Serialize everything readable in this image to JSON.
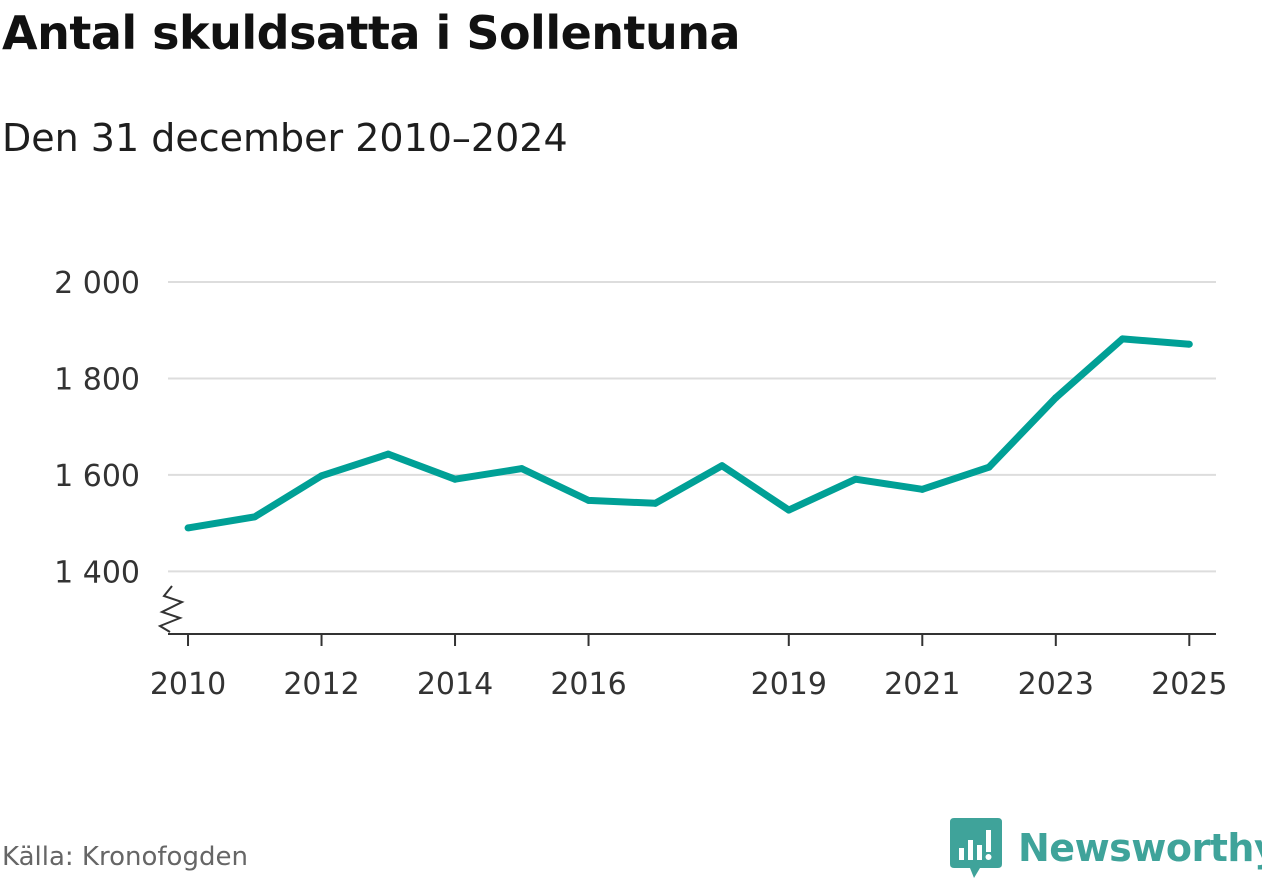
{
  "header": {
    "title": "Antal skuldsatta i Sollentuna",
    "subtitle": "Den 31 december 2010–2024"
  },
  "footer": {
    "source": "Källa: Kronofogden",
    "brand": "Newsworthy"
  },
  "colors": {
    "line": "#00a096",
    "grid": "#dddddd",
    "axis": "#333333",
    "brand": "#3fa39a"
  },
  "chart_data": {
    "type": "line",
    "title": "Antal skuldsatta i Sollentuna",
    "subtitle": "Den 31 december 2010–2024",
    "xlabel": "",
    "ylabel": "",
    "xlim": [
      2009.7,
      2025.4
    ],
    "ylim": [
      1270,
      2000
    ],
    "y_axis_break": true,
    "grid": "horizontal",
    "x_ticks": [
      2010,
      2012,
      2014,
      2016,
      2019,
      2021,
      2023,
      2025
    ],
    "x_tick_labels": [
      "2010",
      "2012",
      "2014",
      "2016",
      "2019",
      "2021",
      "2023",
      "2025"
    ],
    "y_ticks": [
      1400,
      1600,
      1800,
      2000
    ],
    "y_tick_labels": [
      "1 400",
      "1 600",
      "1 800",
      "2 000"
    ],
    "series": [
      {
        "x": [
          2010,
          2011,
          2012,
          2013,
          2014,
          2015,
          2016,
          2017,
          2018,
          2019,
          2020,
          2021,
          2022,
          2023,
          2024,
          2025
        ],
        "values": [
          1490,
          1513,
          1598,
          1643,
          1591,
          1613,
          1547,
          1541,
          1619,
          1527,
          1591,
          1570,
          1616,
          1760,
          1882,
          1871
        ]
      }
    ]
  }
}
